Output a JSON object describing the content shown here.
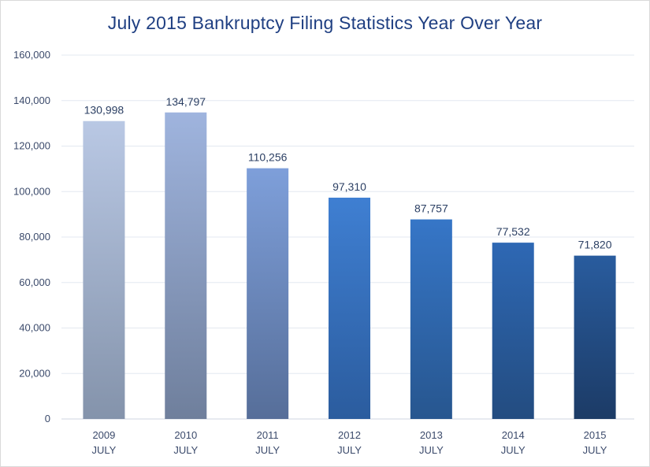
{
  "chart_data": {
    "type": "bar",
    "title": "July 2015 Bankruptcy Filing Statistics Year Over Year",
    "xlabel": "",
    "ylabel": "",
    "categories": [
      {
        "year": "2009",
        "month": "JULY"
      },
      {
        "year": "2010",
        "month": "JULY"
      },
      {
        "year": "2011",
        "month": "JULY"
      },
      {
        "year": "2012",
        "month": "JULY"
      },
      {
        "year": "2013",
        "month": "JULY"
      },
      {
        "year": "2014",
        "month": "JULY"
      },
      {
        "year": "2015",
        "month": "JULY"
      }
    ],
    "values": [
      130998,
      134797,
      110256,
      97310,
      87757,
      77532,
      71820
    ],
    "data_labels": [
      "130,998",
      "134,797",
      "110,256",
      "97,310",
      "87,757",
      "77,532",
      "71,820"
    ],
    "ylim": [
      0,
      160000
    ],
    "yticks": [
      "0",
      "20,000",
      "40,000",
      "60,000",
      "80,000",
      "100,000",
      "120,000",
      "140,000",
      "160,000"
    ],
    "grid": true,
    "bar_colors": [
      [
        "#b9c8e4",
        "#8493ab"
      ],
      [
        "#9fb4de",
        "#6f7f9c"
      ],
      [
        "#7e9fda",
        "#566e99"
      ],
      [
        "#3f7fd2",
        "#2b5c9e"
      ],
      [
        "#3676c7",
        "#27568f"
      ],
      [
        "#2e68b4",
        "#234c80"
      ],
      [
        "#295c9e",
        "#1c3b66"
      ]
    ]
  }
}
